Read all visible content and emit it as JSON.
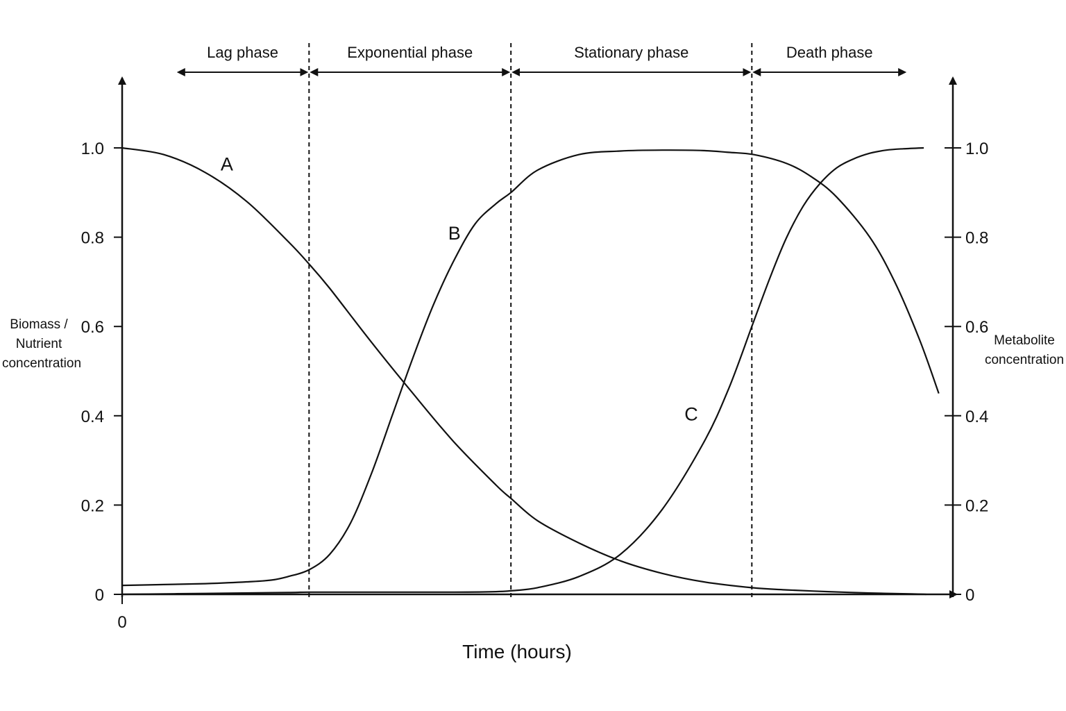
{
  "chart_data": {
    "type": "line",
    "title": "",
    "xlabel": "Time (hours)",
    "x_tick_labels": [
      "0"
    ],
    "ylabel_left_lines": [
      "Biomass /",
      "Nutrient",
      "concentration"
    ],
    "ylabel_right_lines": [
      "Metabolite",
      "concentration"
    ],
    "y_ticks": [
      0,
      0.2,
      0.4,
      0.6,
      0.8,
      1.0
    ],
    "y_tick_labels": [
      "0",
      "0.2",
      "0.4",
      "0.6",
      "0.8",
      "1.0"
    ],
    "ylim": [
      0,
      1.0
    ],
    "xlim": [
      0,
      1.0
    ],
    "grid": false,
    "phases": [
      {
        "name": "Lag phase",
        "start": 0.065,
        "end": 0.225
      },
      {
        "name": "Exponential phase",
        "start": 0.225,
        "end": 0.468
      },
      {
        "name": "Stationary phase",
        "start": 0.468,
        "end": 0.758
      },
      {
        "name": "Death phase",
        "start": 0.758,
        "end": 0.945
      }
    ],
    "phase_boundaries": [
      0.225,
      0.468,
      0.758
    ],
    "series": [
      {
        "name": "A",
        "label_at": [
          0.126,
          0.965
        ],
        "x": [
          0,
          0.05,
          0.1,
          0.15,
          0.2,
          0.225,
          0.25,
          0.3,
          0.35,
          0.4,
          0.45,
          0.468,
          0.5,
          0.55,
          0.6,
          0.65,
          0.7,
          0.758,
          0.8,
          0.85,
          0.9,
          0.95,
          0.968
        ],
        "values": [
          1.0,
          0.985,
          0.945,
          0.88,
          0.79,
          0.74,
          0.685,
          0.565,
          0.45,
          0.34,
          0.245,
          0.215,
          0.165,
          0.115,
          0.075,
          0.047,
          0.028,
          0.015,
          0.01,
          0.006,
          0.003,
          0.001,
          0.0
        ]
      },
      {
        "name": "B",
        "label_at": [
          0.4,
          0.81
        ],
        "x": [
          0,
          0.05,
          0.1,
          0.15,
          0.18,
          0.2,
          0.225,
          0.25,
          0.275,
          0.3,
          0.325,
          0.35,
          0.375,
          0.4,
          0.425,
          0.45,
          0.468,
          0.5,
          0.55,
          0.6,
          0.65,
          0.7,
          0.73,
          0.76,
          0.8,
          0.83,
          0.86,
          0.9,
          0.93,
          0.96,
          0.983
        ],
        "values": [
          0.02,
          0.022,
          0.024,
          0.028,
          0.032,
          0.04,
          0.055,
          0.09,
          0.16,
          0.27,
          0.4,
          0.53,
          0.65,
          0.75,
          0.83,
          0.875,
          0.9,
          0.95,
          0.985,
          0.993,
          0.995,
          0.994,
          0.99,
          0.985,
          0.965,
          0.935,
          0.89,
          0.8,
          0.7,
          0.57,
          0.45
        ]
      },
      {
        "name": "C",
        "label_at": [
          0.685,
          0.405
        ],
        "x": [
          0,
          0.1,
          0.2,
          0.225,
          0.3,
          0.4,
          0.45,
          0.468,
          0.5,
          0.55,
          0.6,
          0.65,
          0.7,
          0.73,
          0.758,
          0.78,
          0.8,
          0.82,
          0.84,
          0.86,
          0.88,
          0.9,
          0.92,
          0.94,
          0.965
        ],
        "values": [
          0.0,
          0.002,
          0.004,
          0.005,
          0.005,
          0.005,
          0.006,
          0.008,
          0.015,
          0.04,
          0.09,
          0.19,
          0.34,
          0.46,
          0.6,
          0.71,
          0.8,
          0.87,
          0.92,
          0.955,
          0.975,
          0.988,
          0.995,
          0.998,
          1.0
        ]
      }
    ]
  }
}
